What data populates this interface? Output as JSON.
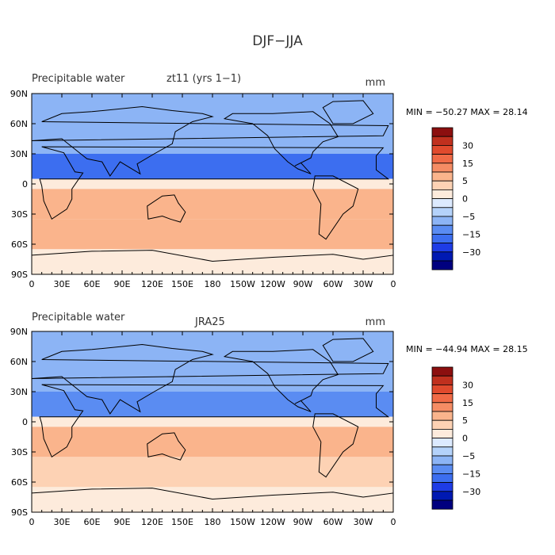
{
  "figure_title": "DJF−JJA",
  "colors": {
    "levels": [
      "#00007f",
      "#0019b2",
      "#1e3ce6",
      "#3c6ef0",
      "#5a8cf2",
      "#8cb4f5",
      "#b4d2fa",
      "#dceaff",
      "#fdebdc",
      "#fdd2b4",
      "#fab48c",
      "#f58c64",
      "#f06a46",
      "#e04a2d",
      "#c0301e",
      "#8c0f0f"
    ],
    "continent_outline": "#000000"
  },
  "chart_data": [
    {
      "type": "heatmap",
      "variable": "Precipitable water",
      "source": "zt11 (yrs 1−1)",
      "units": "mm",
      "stats": "MIN = −50.27 MAX =  28.14",
      "min": -50.27,
      "max": 28.14,
      "xaxis_ticks": [
        "0",
        "30E",
        "60E",
        "90E",
        "120E",
        "150E",
        "180",
        "150W",
        "120W",
        "90W",
        "60W",
        "30W",
        "0"
      ],
      "yaxis_ticks": [
        "90N",
        "60N",
        "30N",
        "0",
        "30S",
        "60S",
        "90S"
      ],
      "colorbar_labels": [
        "30",
        "15",
        "5",
        "0",
        "−5",
        "−15",
        "−30"
      ],
      "xlim": [
        0,
        360
      ],
      "ylim": [
        -90,
        90
      ],
      "zones": [
        {
          "lat": [
            60,
            90
          ],
          "value": -12
        },
        {
          "lat": [
            30,
            60
          ],
          "value": -14
        },
        {
          "lat": [
            5,
            30
          ],
          "value": -20
        },
        {
          "lat": [
            -5,
            5
          ],
          "value": 0
        },
        {
          "lat": [
            -35,
            -5
          ],
          "value": 10
        },
        {
          "lat": [
            -65,
            -35
          ],
          "value": 6
        },
        {
          "lat": [
            -90,
            -65
          ],
          "value": 2
        }
      ]
    },
    {
      "type": "heatmap",
      "variable": "Precipitable water",
      "source": "JRA25",
      "units": "mm",
      "stats": "MIN = −44.94 MAX =  28.15",
      "min": -44.94,
      "max": 28.15,
      "xaxis_ticks": [
        "0",
        "30E",
        "60E",
        "90E",
        "120E",
        "150E",
        "180",
        "150W",
        "120W",
        "90W",
        "60W",
        "30W",
        "0"
      ],
      "yaxis_ticks": [
        "90N",
        "60N",
        "30N",
        "0",
        "30S",
        "60S",
        "90S"
      ],
      "colorbar_labels": [
        "30",
        "15",
        "5",
        "0",
        "−5",
        "−15",
        "−30"
      ],
      "xlim": [
        0,
        360
      ],
      "ylim": [
        -90,
        90
      ],
      "zones": [
        {
          "lat": [
            60,
            90
          ],
          "value": -10
        },
        {
          "lat": [
            30,
            60
          ],
          "value": -13
        },
        {
          "lat": [
            5,
            30
          ],
          "value": -18
        },
        {
          "lat": [
            -5,
            5
          ],
          "value": 0
        },
        {
          "lat": [
            -35,
            -5
          ],
          "value": 9
        },
        {
          "lat": [
            -65,
            -35
          ],
          "value": 5
        },
        {
          "lat": [
            -90,
            -65
          ],
          "value": 2
        }
      ]
    }
  ]
}
